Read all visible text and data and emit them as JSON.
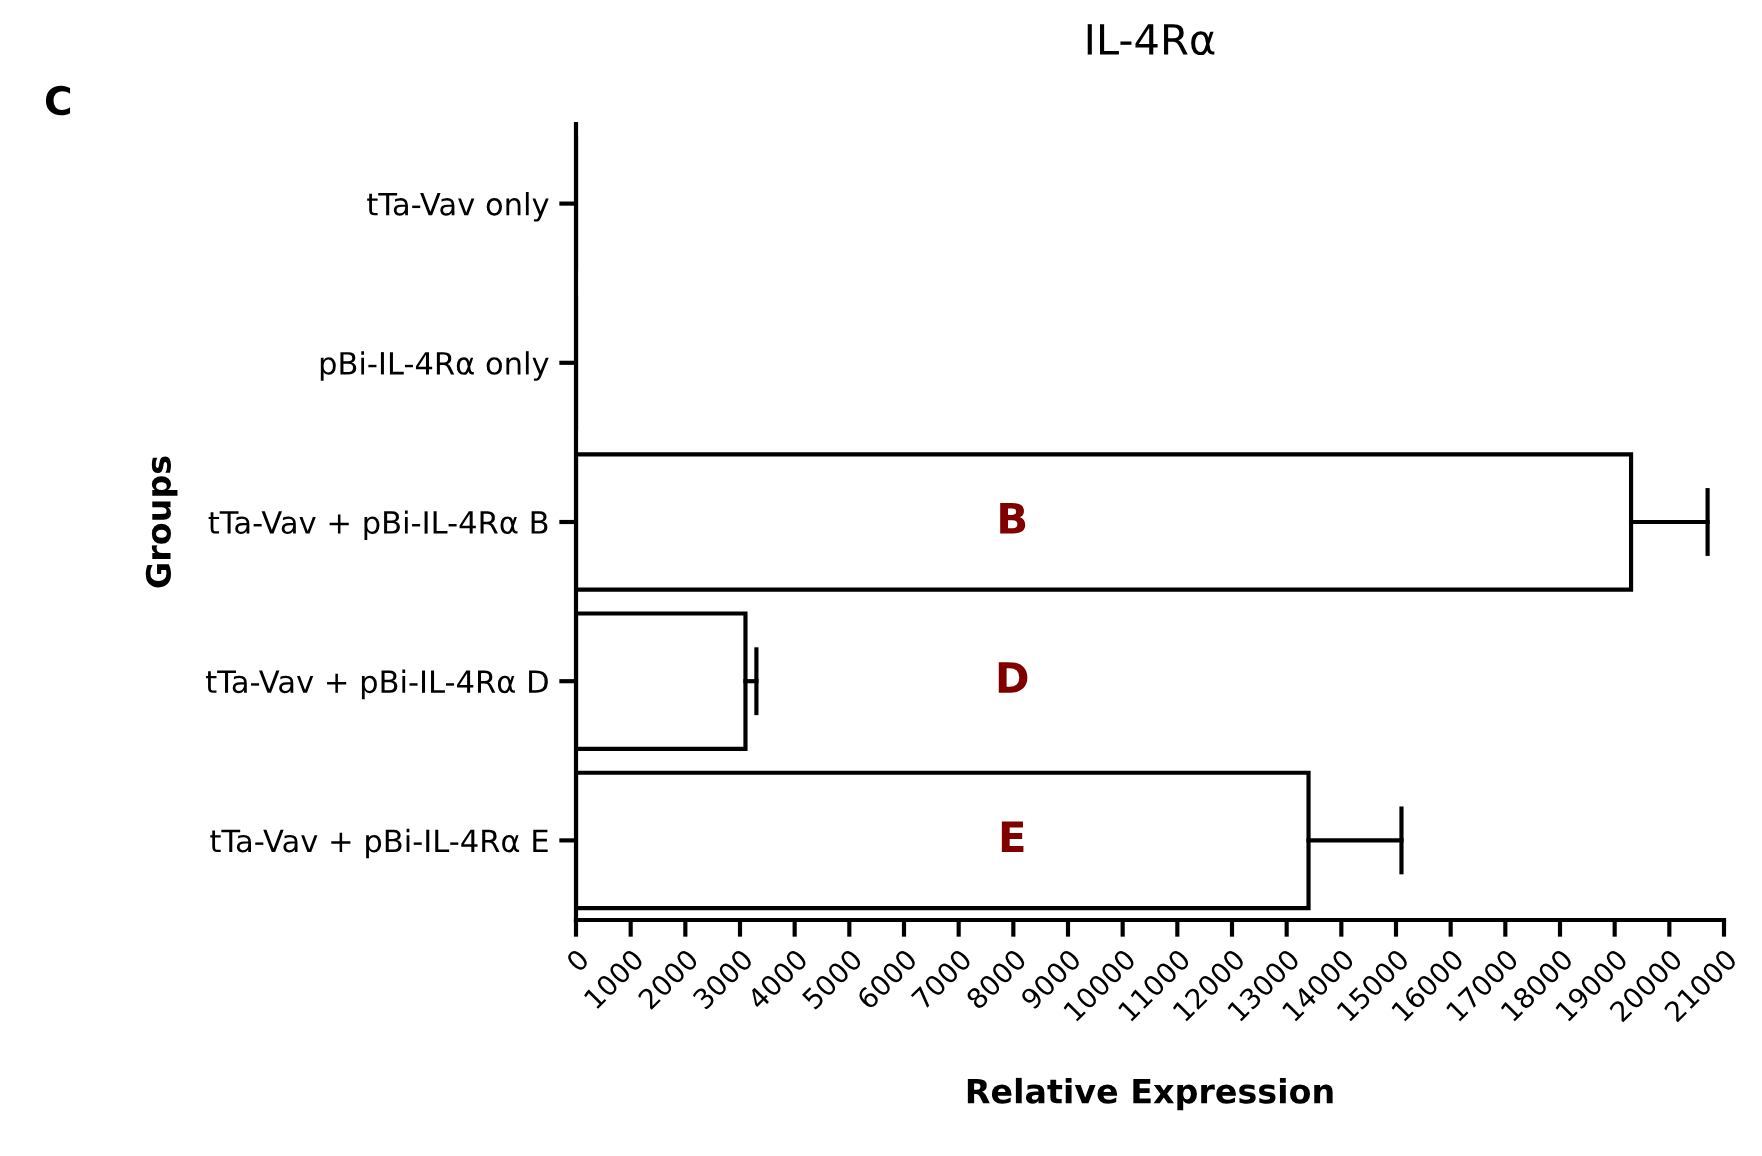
{
  "chart_data": {
    "type": "bar",
    "orientation": "horizontal",
    "title": "IL-4Rα",
    "xlabel": "Relative Expression",
    "ylabel": "Groups",
    "categories": [
      "tTa-Vav only",
      "pBi-IL-4Rα only",
      "tTa-Vav + pBi-IL-4Rα B",
      "tTa-Vav + pBi-IL-4Rα D",
      "tTa-Vav + pBi-IL-4Rα E"
    ],
    "values": [
      0,
      0,
      19300,
      3100,
      13400
    ],
    "errors": [
      null,
      null,
      [
        19300,
        20700
      ],
      [
        3100,
        3300
      ],
      [
        13400,
        15100
      ]
    ],
    "color": "#ffffff",
    "xlim": [
      0,
      21000
    ],
    "xticks": [
      0,
      1000,
      2000,
      3000,
      4000,
      5000,
      6000,
      7000,
      8000,
      9000,
      10000,
      11000,
      12000,
      13000,
      14000,
      15000,
      16000,
      17000,
      18000,
      19000,
      20000,
      21000
    ],
    "grid": false,
    "annotations": [
      "C",
      "B",
      "D",
      "E"
    ]
  }
}
